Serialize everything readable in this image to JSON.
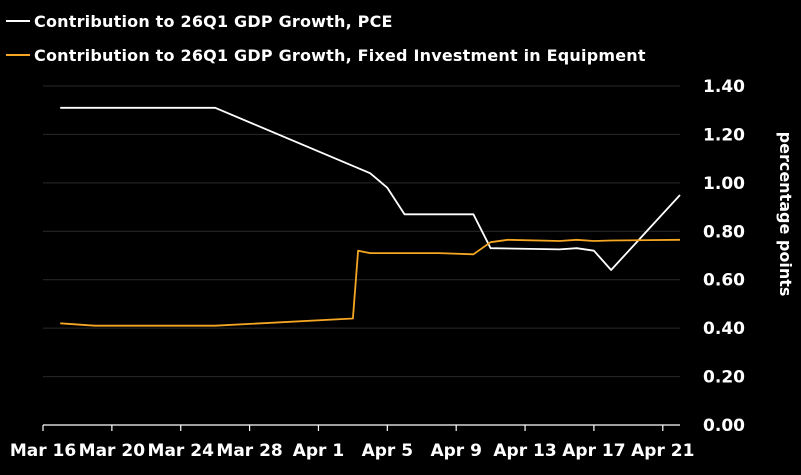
{
  "colors": {
    "background": "#000000",
    "pce": "#ffffff",
    "equipment": "#f5a623",
    "grid": "#2a2a2a"
  },
  "chart_data": {
    "type": "line",
    "title": "",
    "xlabel": "",
    "ylabel": "percentage points",
    "ylim": [
      0,
      1.4
    ],
    "y_ticks": [
      "1.40",
      "1.20",
      "1.00",
      "0.80",
      "0.60",
      "0.40",
      "0.20",
      "0.00"
    ],
    "y_tick_values": [
      1.4,
      1.2,
      1.0,
      0.8,
      0.6,
      0.4,
      0.2,
      0.0
    ],
    "x_domain_days": [
      0,
      37
    ],
    "x_tick_labels": [
      "Mar 16",
      "Mar 20",
      "Mar 24",
      "Mar 28",
      "Apr 1",
      "Apr 5",
      "Apr 9",
      "Apr 13",
      "Apr 17",
      "Apr 21"
    ],
    "x_tick_days": [
      0,
      4,
      8,
      12,
      16,
      20,
      24,
      28,
      32,
      36
    ],
    "legend_position": "top-left",
    "series": [
      {
        "name": "Contribution to 26Q1 GDP Growth, PCE",
        "color": "#ffffff",
        "x": [
          1,
          10,
          19,
          20,
          21,
          25,
          26,
          30,
          31,
          32,
          33,
          37
        ],
        "y": [
          1.31,
          1.31,
          1.04,
          0.98,
          0.87,
          0.87,
          0.73,
          0.725,
          0.73,
          0.72,
          0.64,
          0.95
        ]
      },
      {
        "name": "Contribution to 26Q1 GDP Growth, Fixed Investment in Equipment",
        "color": "#f5a623",
        "x": [
          1,
          3,
          10,
          18,
          18.3,
          19,
          20,
          23,
          25,
          26,
          27,
          30,
          31,
          32,
          33,
          37
        ],
        "y": [
          0.42,
          0.41,
          0.41,
          0.44,
          0.72,
          0.71,
          0.71,
          0.71,
          0.705,
          0.755,
          0.765,
          0.76,
          0.765,
          0.76,
          0.762,
          0.765
        ]
      }
    ]
  }
}
